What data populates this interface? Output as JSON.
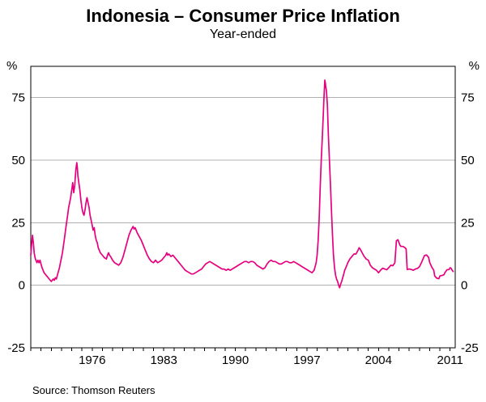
{
  "chart_data": {
    "type": "line",
    "title": "Indonesia – Consumer Price Inflation",
    "subtitle": "Year-ended",
    "unit_left": "%",
    "unit_right": "%",
    "source": "Source: Thomson Reuters",
    "grid": true,
    "legend_position": "none",
    "line_color": "#e6007e",
    "grid_color": "#b0b0b0",
    "axis_color": "#000000",
    "ylim": [
      -25,
      87.5
    ],
    "yticks": [
      -25,
      0,
      25,
      50,
      75
    ],
    "gridlines": [
      0,
      25,
      50,
      75
    ],
    "xlim": [
      1970,
      2011.5
    ],
    "xtick_labels": [
      1976,
      1983,
      1990,
      1997,
      2004,
      2011
    ],
    "minor_xtick_every": 1,
    "series": [
      {
        "name": "Consumer price inflation (year-ended, %)",
        "points": [
          [
            1970.0,
            12
          ],
          [
            1970.08,
            16
          ],
          [
            1970.17,
            20
          ],
          [
            1970.25,
            17
          ],
          [
            1970.33,
            13
          ],
          [
            1970.42,
            11
          ],
          [
            1970.5,
            10
          ],
          [
            1970.6,
            9
          ],
          [
            1970.7,
            10
          ],
          [
            1970.8,
            9
          ],
          [
            1970.9,
            10
          ],
          [
            1971.0,
            8.5
          ],
          [
            1971.1,
            7
          ],
          [
            1971.2,
            6
          ],
          [
            1971.3,
            5
          ],
          [
            1971.4,
            4.5
          ],
          [
            1971.5,
            4
          ],
          [
            1971.6,
            3.5
          ],
          [
            1971.7,
            3
          ],
          [
            1971.8,
            2.5
          ],
          [
            1971.9,
            2
          ],
          [
            1972.0,
            1.5
          ],
          [
            1972.1,
            2
          ],
          [
            1972.2,
            2.5
          ],
          [
            1972.3,
            2
          ],
          [
            1972.4,
            3
          ],
          [
            1972.5,
            2.5
          ],
          [
            1972.6,
            4
          ],
          [
            1972.7,
            5.5
          ],
          [
            1972.8,
            7
          ],
          [
            1972.9,
            9
          ],
          [
            1973.0,
            11
          ],
          [
            1973.1,
            13
          ],
          [
            1973.2,
            16
          ],
          [
            1973.3,
            19
          ],
          [
            1973.4,
            22
          ],
          [
            1973.5,
            25
          ],
          [
            1973.6,
            28
          ],
          [
            1973.7,
            31
          ],
          [
            1973.8,
            33
          ],
          [
            1973.9,
            35
          ],
          [
            1974.0,
            38
          ],
          [
            1974.1,
            41
          ],
          [
            1974.15,
            39
          ],
          [
            1974.2,
            37
          ],
          [
            1974.3,
            40
          ],
          [
            1974.35,
            43
          ],
          [
            1974.4,
            46
          ],
          [
            1974.5,
            49
          ],
          [
            1974.55,
            47
          ],
          [
            1974.6,
            44
          ],
          [
            1974.7,
            41
          ],
          [
            1974.8,
            38
          ],
          [
            1974.9,
            34
          ],
          [
            1975.0,
            31
          ],
          [
            1975.1,
            29
          ],
          [
            1975.2,
            28
          ],
          [
            1975.3,
            30
          ],
          [
            1975.4,
            33
          ],
          [
            1975.5,
            35
          ],
          [
            1975.6,
            33
          ],
          [
            1975.7,
            31
          ],
          [
            1975.8,
            28
          ],
          [
            1975.9,
            26
          ],
          [
            1976.0,
            24
          ],
          [
            1976.1,
            22
          ],
          [
            1976.2,
            23
          ],
          [
            1976.3,
            20
          ],
          [
            1976.4,
            18
          ],
          [
            1976.5,
            17
          ],
          [
            1976.6,
            15
          ],
          [
            1976.7,
            14
          ],
          [
            1976.8,
            13
          ],
          [
            1976.9,
            12.5
          ],
          [
            1977.0,
            12
          ],
          [
            1977.2,
            11
          ],
          [
            1977.4,
            10.5
          ],
          [
            1977.5,
            12
          ],
          [
            1977.6,
            13
          ],
          [
            1977.7,
            12
          ],
          [
            1977.8,
            11.5
          ],
          [
            1978.0,
            10
          ],
          [
            1978.2,
            9
          ],
          [
            1978.4,
            8.5
          ],
          [
            1978.6,
            8
          ],
          [
            1978.8,
            9
          ],
          [
            1979.0,
            11
          ],
          [
            1979.2,
            14
          ],
          [
            1979.4,
            17
          ],
          [
            1979.6,
            20
          ],
          [
            1979.8,
            22
          ],
          [
            1980.0,
            23.5
          ],
          [
            1980.1,
            22.5
          ],
          [
            1980.2,
            23
          ],
          [
            1980.3,
            22
          ],
          [
            1980.4,
            21
          ],
          [
            1980.6,
            19.5
          ],
          [
            1980.8,
            18
          ],
          [
            1981.0,
            16
          ],
          [
            1981.2,
            14
          ],
          [
            1981.4,
            12
          ],
          [
            1981.6,
            10.5
          ],
          [
            1981.8,
            9.5
          ],
          [
            1982.0,
            9
          ],
          [
            1982.2,
            10
          ],
          [
            1982.4,
            9
          ],
          [
            1982.6,
            9.5
          ],
          [
            1982.8,
            10
          ],
          [
            1983.0,
            11
          ],
          [
            1983.2,
            12
          ],
          [
            1983.3,
            13
          ],
          [
            1983.4,
            12
          ],
          [
            1983.5,
            12.5
          ],
          [
            1983.7,
            11.5
          ],
          [
            1983.9,
            12
          ],
          [
            1984.1,
            11
          ],
          [
            1984.3,
            10
          ],
          [
            1984.5,
            9
          ],
          [
            1984.7,
            8
          ],
          [
            1984.9,
            7
          ],
          [
            1985.1,
            6
          ],
          [
            1985.3,
            5.5
          ],
          [
            1985.5,
            5
          ],
          [
            1985.7,
            4.5
          ],
          [
            1985.9,
            4.5
          ],
          [
            1986.1,
            5
          ],
          [
            1986.3,
            5.5
          ],
          [
            1986.5,
            6
          ],
          [
            1986.7,
            6.5
          ],
          [
            1986.9,
            7.5
          ],
          [
            1987.1,
            8.5
          ],
          [
            1987.3,
            9
          ],
          [
            1987.5,
            9.5
          ],
          [
            1987.7,
            9
          ],
          [
            1987.9,
            8.5
          ],
          [
            1988.1,
            8
          ],
          [
            1988.3,
            7.5
          ],
          [
            1988.5,
            7
          ],
          [
            1988.7,
            6.5
          ],
          [
            1988.9,
            6.5
          ],
          [
            1989.1,
            6
          ],
          [
            1989.3,
            6.5
          ],
          [
            1989.5,
            6
          ],
          [
            1989.7,
            6.5
          ],
          [
            1989.9,
            7
          ],
          [
            1990.1,
            7.5
          ],
          [
            1990.3,
            8
          ],
          [
            1990.5,
            8.5
          ],
          [
            1990.7,
            9
          ],
          [
            1990.9,
            9.5
          ],
          [
            1991.1,
            9.5
          ],
          [
            1991.3,
            9
          ],
          [
            1991.5,
            9.5
          ],
          [
            1991.7,
            9.5
          ],
          [
            1991.9,
            9
          ],
          [
            1992.1,
            8
          ],
          [
            1992.3,
            7.5
          ],
          [
            1992.5,
            7
          ],
          [
            1992.7,
            6.5
          ],
          [
            1992.9,
            7
          ],
          [
            1993.1,
            8.5
          ],
          [
            1993.3,
            9.5
          ],
          [
            1993.5,
            10
          ],
          [
            1993.7,
            9.5
          ],
          [
            1993.9,
            9.5
          ],
          [
            1994.1,
            9
          ],
          [
            1994.3,
            8.5
          ],
          [
            1994.5,
            8.5
          ],
          [
            1994.7,
            9
          ],
          [
            1994.9,
            9.5
          ],
          [
            1995.1,
            9.5
          ],
          [
            1995.3,
            9
          ],
          [
            1995.5,
            9
          ],
          [
            1995.7,
            9.5
          ],
          [
            1995.9,
            9
          ],
          [
            1996.1,
            8.5
          ],
          [
            1996.3,
            8
          ],
          [
            1996.5,
            7.5
          ],
          [
            1996.7,
            7
          ],
          [
            1996.9,
            6.5
          ],
          [
            1997.1,
            6
          ],
          [
            1997.3,
            5.5
          ],
          [
            1997.5,
            5
          ],
          [
            1997.7,
            6
          ],
          [
            1997.9,
            9
          ],
          [
            1998.0,
            12
          ],
          [
            1998.1,
            18
          ],
          [
            1998.2,
            27
          ],
          [
            1998.3,
            39
          ],
          [
            1998.4,
            50
          ],
          [
            1998.5,
            59
          ],
          [
            1998.6,
            68
          ],
          [
            1998.65,
            73
          ],
          [
            1998.7,
            78
          ],
          [
            1998.75,
            82
          ],
          [
            1998.8,
            81
          ],
          [
            1998.85,
            79
          ],
          [
            1998.9,
            78
          ],
          [
            1999.0,
            72
          ],
          [
            1999.05,
            66
          ],
          [
            1999.1,
            60
          ],
          [
            1999.2,
            50
          ],
          [
            1999.3,
            40
          ],
          [
            1999.4,
            30
          ],
          [
            1999.5,
            20
          ],
          [
            1999.6,
            12
          ],
          [
            1999.7,
            7
          ],
          [
            1999.8,
            4
          ],
          [
            1999.9,
            2.5
          ],
          [
            2000.0,
            1.5
          ],
          [
            2000.1,
            0
          ],
          [
            2000.2,
            -1
          ],
          [
            2000.3,
            0.5
          ],
          [
            2000.4,
            1.5
          ],
          [
            2000.5,
            3
          ],
          [
            2000.6,
            4.5
          ],
          [
            2000.7,
            6
          ],
          [
            2000.8,
            7
          ],
          [
            2000.9,
            8
          ],
          [
            2001.0,
            9
          ],
          [
            2001.2,
            10.5
          ],
          [
            2001.4,
            11.5
          ],
          [
            2001.6,
            12.5
          ],
          [
            2001.8,
            12.5
          ],
          [
            2002.0,
            14
          ],
          [
            2002.1,
            15
          ],
          [
            2002.2,
            14.5
          ],
          [
            2002.4,
            13
          ],
          [
            2002.6,
            11.5
          ],
          [
            2002.8,
            10.5
          ],
          [
            2003.0,
            10
          ],
          [
            2003.2,
            8
          ],
          [
            2003.4,
            7
          ],
          [
            2003.6,
            6.5
          ],
          [
            2003.8,
            6
          ],
          [
            2004.0,
            5
          ],
          [
            2004.2,
            6
          ],
          [
            2004.4,
            6.8
          ],
          [
            2004.6,
            6.5
          ],
          [
            2004.8,
            6.2
          ],
          [
            2005.0,
            7
          ],
          [
            2005.2,
            8
          ],
          [
            2005.4,
            7.8
          ],
          [
            2005.6,
            9
          ],
          [
            2005.75,
            17.8
          ],
          [
            2005.9,
            18.2
          ],
          [
            2006.0,
            17
          ],
          [
            2006.1,
            16
          ],
          [
            2006.2,
            15.5
          ],
          [
            2006.4,
            15.5
          ],
          [
            2006.6,
            15
          ],
          [
            2006.7,
            14.5
          ],
          [
            2006.8,
            6.3
          ],
          [
            2007.0,
            6.5
          ],
          [
            2007.2,
            6.3
          ],
          [
            2007.4,
            6
          ],
          [
            2007.6,
            6.5
          ],
          [
            2007.8,
            6.7
          ],
          [
            2008.0,
            7.4
          ],
          [
            2008.2,
            9
          ],
          [
            2008.4,
            11
          ],
          [
            2008.5,
            11.9
          ],
          [
            2008.7,
            12.1
          ],
          [
            2008.9,
            11.1
          ],
          [
            2009.0,
            9.2
          ],
          [
            2009.2,
            7.3
          ],
          [
            2009.4,
            6
          ],
          [
            2009.5,
            3.7
          ],
          [
            2009.7,
            2.8
          ],
          [
            2009.9,
            2.6
          ],
          [
            2010.0,
            3.7
          ],
          [
            2010.2,
            3.9
          ],
          [
            2010.4,
            4.2
          ],
          [
            2010.5,
            5.1
          ],
          [
            2010.7,
            6.2
          ],
          [
            2010.9,
            6.3
          ],
          [
            2011.0,
            7
          ],
          [
            2011.1,
            6.8
          ],
          [
            2011.2,
            6
          ],
          [
            2011.3,
            5.5
          ]
        ]
      }
    ]
  }
}
